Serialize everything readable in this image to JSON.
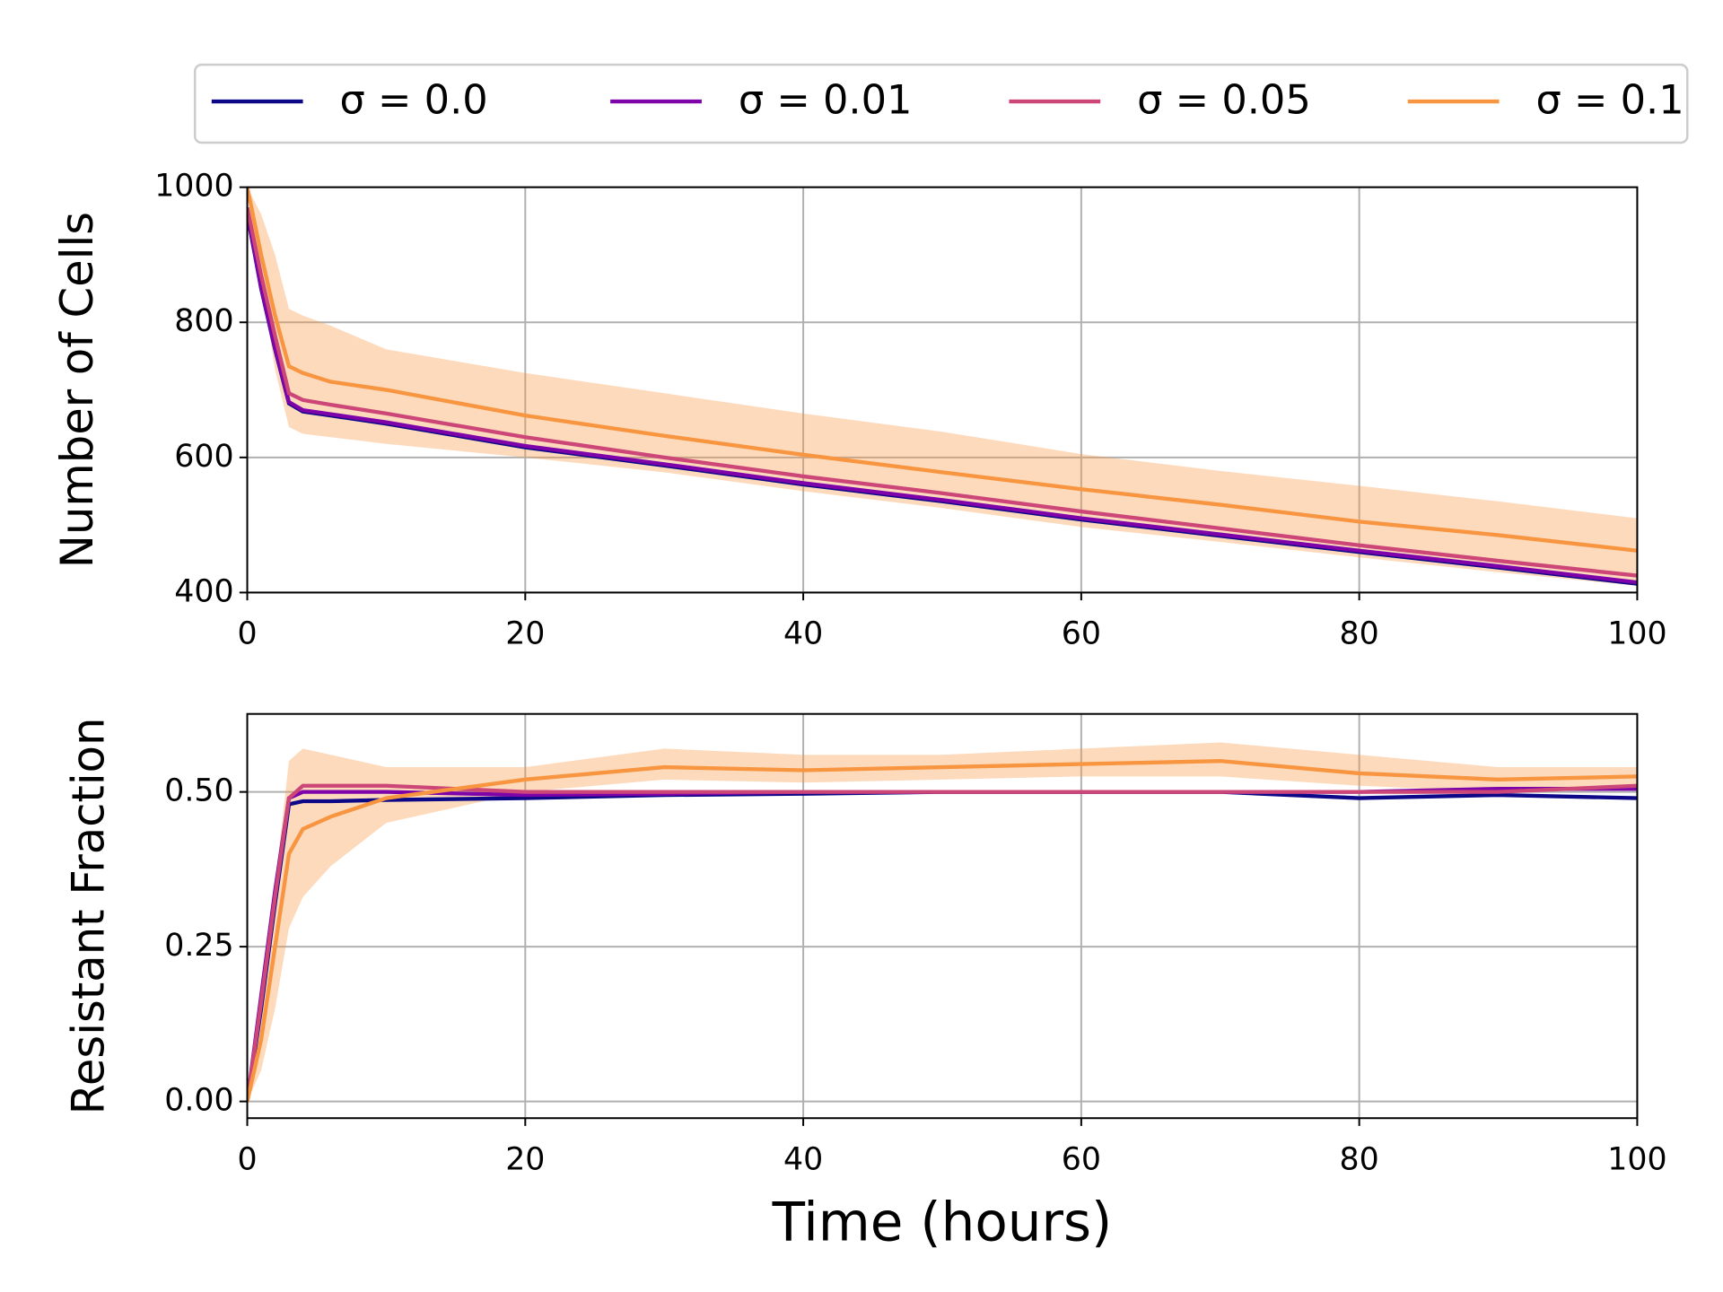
{
  "chart_data": [
    {
      "type": "line",
      "ylabel": "Number of Cells",
      "legend": "top",
      "grid": true,
      "x": [
        0,
        1,
        2,
        3,
        4,
        6,
        10,
        20,
        30,
        40,
        50,
        60,
        70,
        80,
        90,
        100
      ],
      "xlim": [
        0,
        100
      ],
      "xticks": [
        0,
        20,
        40,
        60,
        80,
        100
      ],
      "ylim": [
        400,
        1000
      ],
      "yticks": [
        400,
        600,
        800,
        1000
      ],
      "series": [
        {
          "name": "σ = 0.0",
          "color": "#0d0887",
          "values": [
            960,
            850,
            760,
            680,
            668,
            662,
            650,
            615,
            588,
            560,
            535,
            508,
            484,
            460,
            437,
            413
          ]
        },
        {
          "name": "σ = 0.01",
          "color": "#7e03a8",
          "values": [
            962,
            852,
            762,
            682,
            670,
            664,
            652,
            617,
            590,
            562,
            537,
            510,
            486,
            462,
            439,
            415
          ]
        },
        {
          "name": "σ = 0.05",
          "color": "#cc4778",
          "values": [
            970,
            870,
            780,
            695,
            685,
            678,
            665,
            630,
            600,
            572,
            547,
            520,
            495,
            470,
            447,
            425
          ]
        },
        {
          "name": "σ = 0.1",
          "color": "#f89540",
          "values": [
            1000,
            900,
            810,
            735,
            725,
            712,
            700,
            662,
            632,
            604,
            578,
            553,
            530,
            505,
            485,
            462
          ],
          "upper": [
            1000,
            960,
            900,
            820,
            810,
            795,
            760,
            725,
            695,
            665,
            638,
            605,
            580,
            558,
            535,
            510
          ],
          "lower": [
            990,
            860,
            730,
            645,
            635,
            630,
            620,
            600,
            578,
            550,
            525,
            497,
            475,
            452,
            430,
            410
          ]
        }
      ]
    },
    {
      "type": "line",
      "ylabel": "Resistant Fraction",
      "xlabel": "Time (hours)",
      "grid": true,
      "x": [
        0,
        1,
        2,
        3,
        4,
        6,
        10,
        20,
        30,
        40,
        50,
        60,
        70,
        80,
        90,
        100
      ],
      "xlim": [
        0,
        100
      ],
      "xticks": [
        0,
        20,
        40,
        60,
        80,
        100
      ],
      "ylim": [
        -0.027,
        0.626
      ],
      "yticks": [
        {
          "value": 0,
          "label": "0.00"
        },
        0.25,
        {
          "value": 0.5,
          "label": "0.50"
        }
      ],
      "series": [
        {
          "color": "#0d0887",
          "values": [
            0,
            0.15,
            0.32,
            0.48,
            0.485,
            0.485,
            0.487,
            0.49,
            0.495,
            0.497,
            0.5,
            0.5,
            0.5,
            0.49,
            0.495,
            0.49
          ]
        },
        {
          "color": "#7e03a8",
          "values": [
            0,
            0.17,
            0.34,
            0.49,
            0.5,
            0.5,
            0.5,
            0.495,
            0.497,
            0.5,
            0.5,
            0.5,
            0.5,
            0.5,
            0.505,
            0.505
          ]
        },
        {
          "color": "#cc4778",
          "values": [
            0,
            0.16,
            0.33,
            0.49,
            0.51,
            0.51,
            0.51,
            0.5,
            0.5,
            0.5,
            0.5,
            0.5,
            0.5,
            0.5,
            0.5,
            0.51
          ]
        },
        {
          "color": "#f89540",
          "values": [
            0,
            0.1,
            0.25,
            0.4,
            0.44,
            0.46,
            0.49,
            0.52,
            0.54,
            0.535,
            0.54,
            0.545,
            0.55,
            0.53,
            0.52,
            0.525
          ],
          "upper": [
            0,
            0.13,
            0.35,
            0.55,
            0.57,
            0.56,
            0.54,
            0.54,
            0.57,
            0.56,
            0.56,
            0.57,
            0.58,
            0.56,
            0.54,
            0.54
          ],
          "lower": [
            0,
            0.05,
            0.15,
            0.28,
            0.33,
            0.38,
            0.45,
            0.5,
            0.52,
            0.515,
            0.52,
            0.525,
            0.525,
            0.51,
            0.5,
            0.51
          ]
        }
      ]
    }
  ]
}
